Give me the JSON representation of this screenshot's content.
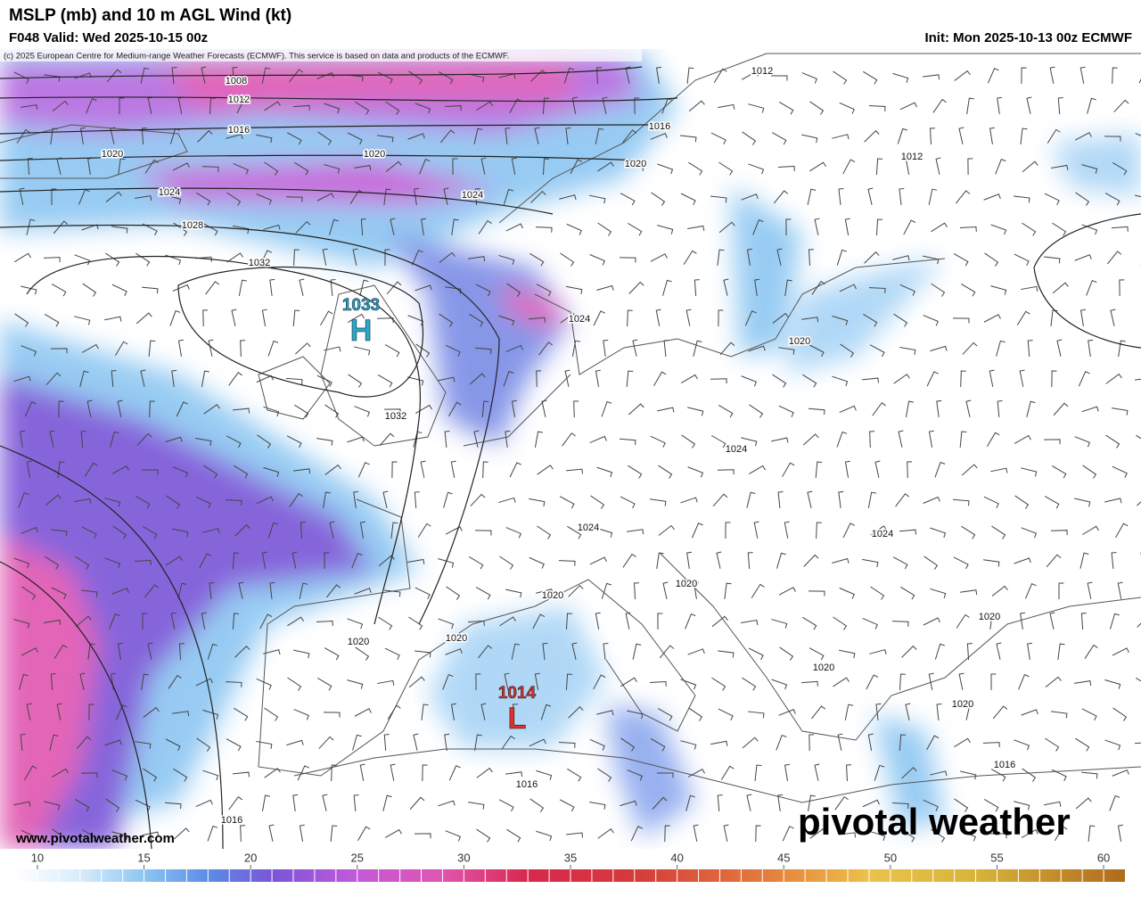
{
  "header": {
    "title": "MSLP (mb) and 10 m AGL Wind (kt)",
    "valid": "F048 Valid: Wed 2025-10-15 00z",
    "init": "Init: Mon 2025-10-13 00z ECMWF",
    "credit": "(c) 2025 European Centre for Medium-range Weather Forecasts (ECMWF). This service is based on data and products of the ECMWF."
  },
  "map": {
    "isobar_labels": [
      1008,
      1012,
      1016,
      1020,
      1020,
      1024,
      1024,
      1028,
      1032,
      1012,
      1016,
      1020,
      1012,
      1024,
      1020,
      1032,
      1024,
      1024,
      1024,
      1020,
      1020,
      1020,
      1020,
      1020,
      1020,
      1020,
      1016,
      1016,
      1016
    ],
    "pressure_centers": [
      {
        "symbol": "H",
        "value": 1033,
        "color": "#2aa7c9"
      },
      {
        "symbol": "L",
        "value": 1014,
        "color": "#e0302a"
      }
    ]
  },
  "footer": {
    "url": "www.pivotalweather.com",
    "brand": "pivotal weather"
  },
  "colorbar": {
    "xlim": [
      9,
      61
    ],
    "ticks": [
      10,
      15,
      20,
      25,
      30,
      35,
      40,
      45,
      50,
      55,
      60
    ],
    "color_stops": [
      [
        9,
        "#ffffff"
      ],
      [
        12,
        "#d8ecfb"
      ],
      [
        15,
        "#8cc6f2"
      ],
      [
        18,
        "#5b8de6"
      ],
      [
        21,
        "#7a55d8"
      ],
      [
        25,
        "#c25ad8"
      ],
      [
        29,
        "#e055b0"
      ],
      [
        33,
        "#d8284e"
      ],
      [
        38,
        "#d43b3b"
      ],
      [
        44,
        "#e47a3c"
      ],
      [
        49,
        "#ecc24a"
      ],
      [
        54,
        "#d8b43a"
      ],
      [
        61,
        "#b06a1e"
      ]
    ]
  }
}
